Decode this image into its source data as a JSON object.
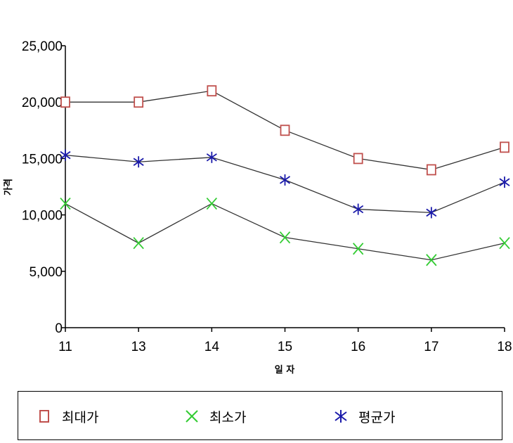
{
  "chart_data": {
    "type": "line",
    "xlabel": "일 자",
    "ylabel": "가격",
    "categories": [
      "11",
      "13",
      "14",
      "15",
      "16",
      "17",
      "18"
    ],
    "ylim": [
      0,
      25000
    ],
    "yticks": [
      0,
      5000,
      10000,
      15000,
      20000,
      25000
    ],
    "ytick_labels": [
      "0",
      "5,000",
      "10,000",
      "15,000",
      "20,000",
      "25,000"
    ],
    "grid": false,
    "legend_position": "bottom",
    "series": [
      {
        "name": "최대가",
        "values": [
          20000,
          20000,
          21000,
          17500,
          15000,
          14000,
          16000
        ],
        "marker": "square",
        "color": "#c0504d"
      },
      {
        "name": "최소가",
        "values": [
          11000,
          7500,
          11000,
          8000,
          7000,
          6000,
          7500
        ],
        "marker": "x",
        "color": "#33cc33"
      },
      {
        "name": "평균가",
        "values": [
          15300,
          14700,
          15100,
          13100,
          10500,
          10200,
          12900
        ],
        "marker": "asterisk",
        "color": "#1a1aaa"
      }
    ],
    "line_color": "#333333"
  }
}
